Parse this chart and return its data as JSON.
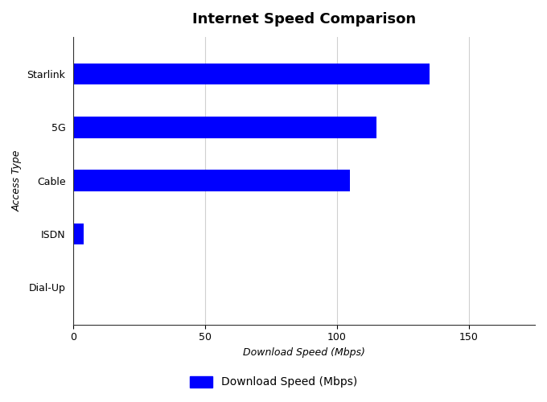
{
  "title": "Internet Speed Comparison",
  "categories": [
    "Dial-Up",
    "ISDN",
    "Cable",
    "5G",
    "Starlink"
  ],
  "values": [
    0.056,
    4,
    105,
    115,
    135
  ],
  "bar_color": "#0000FF",
  "xlabel": "Download Speed (Mbps)",
  "ylabel": "Access Type",
  "xlim": [
    0,
    175
  ],
  "xticks": [
    0,
    50,
    100,
    150
  ],
  "legend_label": "Download Speed (Mbps)",
  "title_fontsize": 13,
  "axis_label_fontsize": 9,
  "tick_fontsize": 9,
  "bar_height": 0.4,
  "background_color": "#ffffff"
}
